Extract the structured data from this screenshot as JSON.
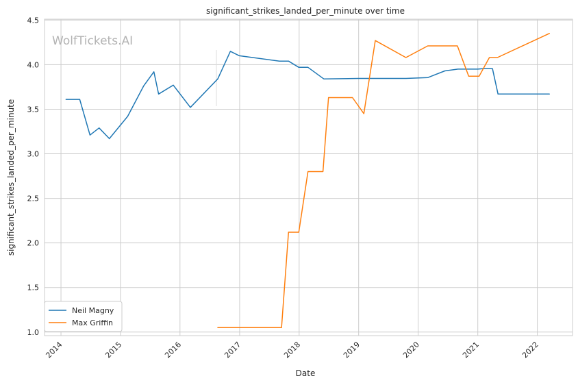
{
  "chart_data": {
    "type": "line",
    "title": "significant_strikes_landed_per_minute over time",
    "xlabel": "Date",
    "ylabel": "significant_strikes_landed_per_minute",
    "watermark": "WolfTickets.AI",
    "xlim": [
      "2013-09-22",
      "2022-08-05"
    ],
    "ylim": [
      0.96,
      4.51
    ],
    "x_ticks": [
      "2014",
      "2015",
      "2016",
      "2017",
      "2018",
      "2019",
      "2020",
      "2021",
      "2022"
    ],
    "y_ticks": [
      "1.0",
      "1.5",
      "2.0",
      "2.5",
      "3.0",
      "3.5",
      "4.0",
      "4.5"
    ],
    "grid": true,
    "legend_position": "lower-left",
    "colors": {
      "neil": "#1f77b4",
      "max": "#ff7f0e",
      "grid": "#cccccc",
      "axis": "#cccccc"
    },
    "series": [
      {
        "name": "Neil Magny",
        "color": "#1f77b4",
        "points": [
          [
            "2014-02-01",
            3.61
          ],
          [
            "2014-04-26",
            3.61
          ],
          [
            "2014-06-28",
            3.21
          ],
          [
            "2014-08-23",
            3.29
          ],
          [
            "2014-10-25",
            3.17
          ],
          [
            "2015-02-14",
            3.42
          ],
          [
            "2015-05-23",
            3.76
          ],
          [
            "2015-07-25",
            3.92
          ],
          [
            "2015-08-23",
            3.67
          ],
          [
            "2015-11-21",
            3.77
          ],
          [
            "2016-03-05",
            3.52
          ],
          [
            "2016-08-20",
            3.84
          ],
          [
            "2016-11-05",
            4.15
          ],
          [
            "2016-12-30",
            4.1
          ],
          [
            "2017-09-02",
            4.04
          ],
          [
            "2017-10-28",
            4.04
          ],
          [
            "2017-12-30",
            3.97
          ],
          [
            "2018-02-24",
            3.97
          ],
          [
            "2018-06-01",
            3.84
          ],
          [
            "2019-01-01",
            3.845
          ],
          [
            "2019-10-18",
            3.845
          ],
          [
            "2020-03-01",
            3.855
          ],
          [
            "2020-06-13",
            3.93
          ],
          [
            "2020-09-01",
            3.95
          ],
          [
            "2021-01-01",
            3.95
          ],
          [
            "2021-02-01",
            3.955
          ],
          [
            "2021-04-01",
            3.955
          ],
          [
            "2021-05-05",
            3.67
          ],
          [
            "2022-03-16",
            3.67
          ]
        ]
      },
      {
        "name": "Max Griffin",
        "color": "#ff7f0e",
        "points": [
          [
            "2016-08-20",
            1.05
          ],
          [
            "2017-09-15",
            1.05
          ],
          [
            "2017-10-28",
            2.12
          ],
          [
            "2017-12-30",
            2.12
          ],
          [
            "2018-02-24",
            2.8
          ],
          [
            "2018-05-27",
            2.8
          ],
          [
            "2018-06-30",
            3.63
          ],
          [
            "2018-11-24",
            3.63
          ],
          [
            "2019-02-02",
            3.45
          ],
          [
            "2019-04-13",
            4.27
          ],
          [
            "2019-10-18",
            4.08
          ],
          [
            "2020-02-29",
            4.21
          ],
          [
            "2020-08-29",
            4.21
          ],
          [
            "2020-11-06",
            3.87
          ],
          [
            "2021-01-09",
            3.87
          ],
          [
            "2021-03-13",
            4.08
          ],
          [
            "2021-05-01",
            4.08
          ],
          [
            "2022-03-16",
            4.35
          ]
        ]
      }
    ]
  }
}
